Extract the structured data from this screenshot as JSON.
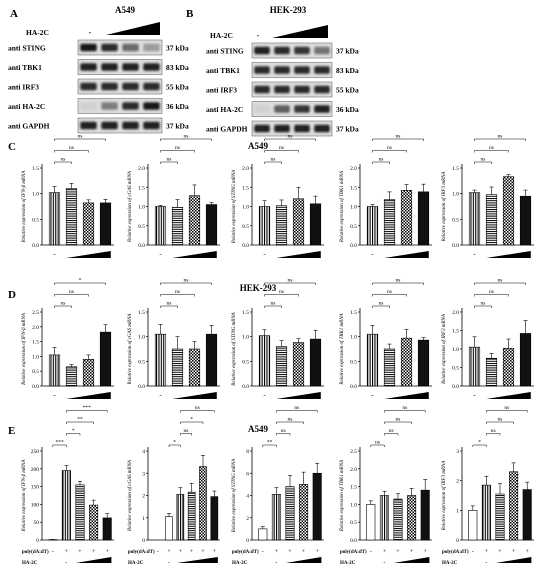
{
  "panelA": {
    "letter": "A",
    "cell": "A549",
    "treatment": "HA-2C",
    "dash": "-",
    "rows": [
      {
        "label": "anti STING",
        "kda": "37 kDa",
        "intensity": [
          0.95,
          0.85,
          0.55,
          0.3
        ]
      },
      {
        "label": "anti TBK1",
        "kda": "83 kDa",
        "intensity": [
          0.9,
          0.9,
          0.9,
          0.9
        ]
      },
      {
        "label": "anti IRF3",
        "kda": "55 kDa",
        "intensity": [
          0.85,
          0.85,
          0.85,
          0.85
        ]
      },
      {
        "label": "anti HA-2C",
        "kda": "36 kDa",
        "intensity": [
          0.05,
          0.45,
          0.85,
          0.95
        ]
      },
      {
        "label": "anti GAPDH",
        "kda": "37 kDa",
        "intensity": [
          0.9,
          0.9,
          0.9,
          0.9
        ]
      }
    ]
  },
  "panelB": {
    "letter": "B",
    "cell": "HEK-293",
    "treatment": "HA-2C",
    "dash": "-",
    "rows": [
      {
        "label": "anti STING",
        "kda": "37 kDa",
        "intensity": [
          0.9,
          0.85,
          0.8,
          0.5
        ]
      },
      {
        "label": "anti TBK1",
        "kda": "83 kDa",
        "intensity": [
          0.85,
          0.85,
          0.85,
          0.85
        ]
      },
      {
        "label": "anti IRF3",
        "kda": "55 kDa",
        "intensity": [
          0.85,
          0.85,
          0.85,
          0.85
        ]
      },
      {
        "label": "anti HA-2C",
        "kda": "36 kDa",
        "intensity": [
          0.05,
          0.6,
          0.8,
          0.9
        ]
      },
      {
        "label": "anti GAPDH",
        "kda": "37 kDa",
        "intensity": [
          0.9,
          0.9,
          0.9,
          0.9
        ]
      }
    ]
  },
  "rowC": {
    "letter": "C",
    "title": "A549"
  },
  "rowD": {
    "letter": "D",
    "title": "HEK-293"
  },
  "rowE": {
    "letter": "E",
    "title": "A549"
  },
  "labels": {
    "polyLabel": "poly(dA:dT)",
    "haLabel": "HA-2C",
    "dash": "-",
    "plus": "+"
  },
  "chart_data": [
    {
      "type": "bar",
      "panel": "C",
      "ylabel": "Relative expression of IFN-β mRNA",
      "yticks": [
        "0.0",
        "0.5",
        "1.0",
        "1.5"
      ],
      "ylim": [
        0,
        1.5
      ],
      "values": [
        1.02,
        1.1,
        0.82,
        0.82
      ],
      "errors": [
        0.12,
        0.1,
        0.06,
        0.07
      ],
      "sig": [
        {
          "a": 0,
          "b": 1,
          "text": "ns"
        },
        {
          "a": 0,
          "b": 2,
          "text": "ns"
        },
        {
          "a": 0,
          "b": 3,
          "text": "ns"
        }
      ]
    },
    {
      "type": "bar",
      "panel": "C",
      "ylabel": "Relative expression of cGAS mRNA",
      "yticks": [
        "0.0",
        "0.5",
        "1.0",
        "1.5",
        "2.0"
      ],
      "ylim": [
        0,
        2.0
      ],
      "values": [
        1.0,
        0.98,
        1.28,
        1.05
      ],
      "errors": [
        0.03,
        0.2,
        0.28,
        0.05
      ],
      "sig": [
        {
          "a": 0,
          "b": 1,
          "text": "ns"
        },
        {
          "a": 0,
          "b": 2,
          "text": "ns"
        },
        {
          "a": 0,
          "b": 3,
          "text": "ns"
        }
      ]
    },
    {
      "type": "bar",
      "panel": "C",
      "ylabel": "Relative expression of STING mRNA",
      "yticks": [
        "0.0",
        "0.5",
        "1.0",
        "1.5",
        "2.0"
      ],
      "ylim": [
        0,
        2.0
      ],
      "values": [
        1.0,
        1.02,
        1.2,
        1.07
      ],
      "errors": [
        0.15,
        0.15,
        0.3,
        0.2
      ],
      "sig": [
        {
          "a": 0,
          "b": 1,
          "text": "ns"
        },
        {
          "a": 0,
          "b": 2,
          "text": "ns"
        },
        {
          "a": 0,
          "b": 3,
          "text": "ns"
        }
      ]
    },
    {
      "type": "bar",
      "panel": "C",
      "ylabel": "Relative expression of TBK1 mRNA",
      "yticks": [
        "0.0",
        "0.5",
        "1.0",
        "1.5",
        "2.0"
      ],
      "ylim": [
        0,
        2.0
      ],
      "values": [
        1.0,
        1.18,
        1.42,
        1.38
      ],
      "errors": [
        0.05,
        0.2,
        0.15,
        0.2
      ],
      "sig": [
        {
          "a": 0,
          "b": 1,
          "text": "ns"
        },
        {
          "a": 0,
          "b": 2,
          "text": "ns"
        },
        {
          "a": 0,
          "b": 3,
          "text": "ns"
        }
      ]
    },
    {
      "type": "bar",
      "panel": "C",
      "ylabel": "Relative expression of IRF3 mRNA",
      "yticks": [
        "0.0",
        "0.5",
        "1.0",
        "1.5"
      ],
      "ylim": [
        0,
        1.5
      ],
      "values": [
        1.02,
        0.98,
        1.33,
        0.95
      ],
      "errors": [
        0.05,
        0.15,
        0.04,
        0.12
      ],
      "sig": [
        {
          "a": 0,
          "b": 1,
          "text": "ns"
        },
        {
          "a": 0,
          "b": 2,
          "text": "ns"
        },
        {
          "a": 0,
          "b": 3,
          "text": "ns"
        }
      ]
    },
    {
      "type": "bar",
      "panel": "D",
      "ylabel": "Relative expression of IFN-β mRNA",
      "yticks": [
        "0.0",
        "0.5",
        "1.0",
        "1.5",
        "2.0",
        "2.5"
      ],
      "ylim": [
        0,
        2.5
      ],
      "values": [
        1.05,
        0.65,
        0.9,
        1.82
      ],
      "errors": [
        0.25,
        0.07,
        0.15,
        0.25
      ],
      "sig": [
        {
          "a": 0,
          "b": 1,
          "text": "ns"
        },
        {
          "a": 0,
          "b": 2,
          "text": "ns"
        },
        {
          "a": 0,
          "b": 3,
          "text": "*"
        }
      ]
    },
    {
      "type": "bar",
      "panel": "D",
      "ylabel": "Relative expression of cGAS mRNA",
      "yticks": [
        "0.0",
        "0.5",
        "1.0",
        "1.5"
      ],
      "ylim": [
        0,
        1.5
      ],
      "values": [
        1.05,
        0.75,
        0.75,
        1.05
      ],
      "errors": [
        0.2,
        0.25,
        0.15,
        0.18
      ],
      "sig": [
        {
          "a": 0,
          "b": 1,
          "text": "ns"
        },
        {
          "a": 0,
          "b": 2,
          "text": "ns"
        },
        {
          "a": 0,
          "b": 3,
          "text": "ns"
        }
      ]
    },
    {
      "type": "bar",
      "panel": "D",
      "ylabel": "Relative expression of STING mRNA",
      "yticks": [
        "0.0",
        "0.5",
        "1.0",
        "1.5"
      ],
      "ylim": [
        0,
        1.5
      ],
      "values": [
        1.02,
        0.8,
        0.88,
        0.95
      ],
      "errors": [
        0.12,
        0.12,
        0.08,
        0.18
      ],
      "sig": [
        {
          "a": 0,
          "b": 1,
          "text": "ns"
        },
        {
          "a": 0,
          "b": 2,
          "text": "ns"
        },
        {
          "a": 0,
          "b": 3,
          "text": "ns"
        }
      ]
    },
    {
      "type": "bar",
      "panel": "D",
      "ylabel": "Relative expression of TBK1 mRNA",
      "yticks": [
        "0.0",
        "0.5",
        "1.0",
        "1.5"
      ],
      "ylim": [
        0,
        1.5
      ],
      "values": [
        1.05,
        0.75,
        0.97,
        0.93
      ],
      "errors": [
        0.18,
        0.1,
        0.18,
        0.05
      ],
      "sig": [
        {
          "a": 0,
          "b": 1,
          "text": "ns"
        },
        {
          "a": 0,
          "b": 2,
          "text": "ns"
        },
        {
          "a": 0,
          "b": 3,
          "text": "ns"
        }
      ]
    },
    {
      "type": "bar",
      "panel": "D",
      "ylabel": "Relative expression of IRF3 mRNA",
      "yticks": [
        "0.0",
        "0.5",
        "1.0",
        "1.5",
        "2.0"
      ],
      "ylim": [
        0,
        2.0
      ],
      "values": [
        1.05,
        0.75,
        1.02,
        1.42
      ],
      "errors": [
        0.28,
        0.13,
        0.25,
        0.35
      ],
      "sig": [
        {
          "a": 0,
          "b": 1,
          "text": "ns"
        },
        {
          "a": 0,
          "b": 2,
          "text": "ns"
        },
        {
          "a": 0,
          "b": 3,
          "text": "ns"
        }
      ]
    },
    {
      "type": "bar",
      "panel": "E",
      "ylabel": "Relative expression of IFN-β mRNA",
      "yticks": [
        "0",
        "50",
        "100",
        "150",
        "200",
        "250"
      ],
      "ylim": [
        0,
        250
      ],
      "values": [
        1,
        195,
        155,
        98,
        62
      ],
      "errors": [
        0.5,
        14,
        10,
        14,
        12
      ],
      "sig": [
        {
          "a": 0,
          "b": 1,
          "text": "***"
        },
        {
          "a": 1,
          "b": 2,
          "text": "*"
        },
        {
          "a": 1,
          "b": 3,
          "text": "**"
        },
        {
          "a": 1,
          "b": 4,
          "text": "***"
        }
      ]
    },
    {
      "type": "bar",
      "panel": "E",
      "ylabel": "Relative expression of cGAS mRNA",
      "yticks": [
        "0",
        "1",
        "2",
        "3",
        "4"
      ],
      "ylim": [
        0,
        4
      ],
      "values": [
        0,
        1.05,
        2.05,
        2.15,
        3.3,
        1.95
      ],
      "errors": [
        0,
        0.15,
        0.3,
        0.4,
        0.5,
        0.25
      ],
      "sig": [
        {
          "a": 1,
          "b": 2,
          "text": "*"
        },
        {
          "a": 2,
          "b": 3,
          "text": "ns"
        },
        {
          "a": 2,
          "b": 4,
          "text": "*"
        },
        {
          "a": 2,
          "b": 5,
          "text": "ns"
        }
      ]
    },
    {
      "type": "bar",
      "panel": "E",
      "ylabel": "Relative expression of STING mRNA",
      "yticks": [
        "0",
        "2",
        "4",
        "6",
        "8"
      ],
      "ylim": [
        0,
        8
      ],
      "values": [
        1.0,
        4.1,
        4.8,
        5.0,
        6.0
      ],
      "errors": [
        0.2,
        0.6,
        1.0,
        1.1,
        0.9
      ],
      "sig": [
        {
          "a": 0,
          "b": 1,
          "text": "**"
        },
        {
          "a": 1,
          "b": 2,
          "text": "ns"
        },
        {
          "a": 1,
          "b": 3,
          "text": "ns"
        },
        {
          "a": 1,
          "b": 4,
          "text": "ns"
        }
      ]
    },
    {
      "type": "bar",
      "panel": "E",
      "ylabel": "Relative expression of TBK1 mRNA",
      "yticks": [
        "0.0",
        "0.5",
        "1.0",
        "1.5",
        "2.0",
        "2.5"
      ],
      "ylim": [
        0,
        2.5
      ],
      "values": [
        1.0,
        1.25,
        1.15,
        1.25,
        1.4
      ],
      "errors": [
        0.1,
        0.12,
        0.15,
        0.2,
        0.3
      ],
      "sig": [
        {
          "a": 0,
          "b": 1,
          "text": "ns"
        },
        {
          "a": 1,
          "b": 2,
          "text": "ns"
        },
        {
          "a": 1,
          "b": 3,
          "text": "ns"
        },
        {
          "a": 1,
          "b": 4,
          "text": "ns"
        }
      ]
    },
    {
      "type": "bar",
      "panel": "E",
      "ylabel": "Relative expression of IRF3 mRNA",
      "yticks": [
        "0",
        "1",
        "2",
        "3"
      ],
      "ylim": [
        0,
        3
      ],
      "values": [
        1.0,
        1.85,
        1.55,
        2.3,
        1.7
      ],
      "errors": [
        0.15,
        0.3,
        0.35,
        0.3,
        0.25
      ],
      "sig": [
        {
          "a": 0,
          "b": 1,
          "text": "*"
        },
        {
          "a": 1,
          "b": 2,
          "text": "ns"
        },
        {
          "a": 1,
          "b": 3,
          "text": "ns"
        },
        {
          "a": 1,
          "b": 4,
          "text": "ns"
        }
      ]
    }
  ]
}
